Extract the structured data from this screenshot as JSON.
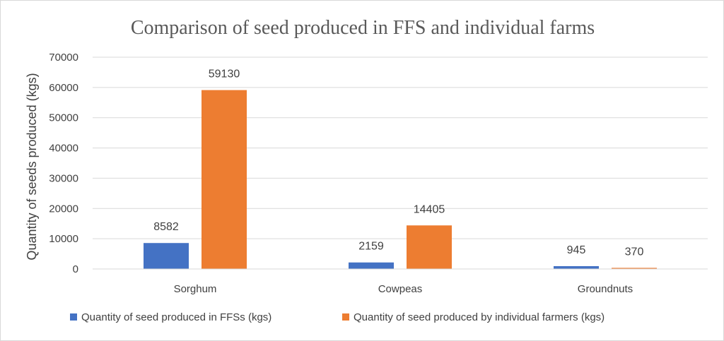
{
  "chart_data": {
    "type": "bar",
    "title": "Comparison of  seed produced in FFS and individual farms",
    "xlabel": "",
    "ylabel": "Quantity of seeds produced (kgs)",
    "categories": [
      "Sorghum",
      "Cowpeas",
      "Groundnuts"
    ],
    "series": [
      {
        "name": "Quantity of seed produced in FFSs (kgs)",
        "values": [
          8582,
          2159,
          945
        ],
        "color": "#4472c4"
      },
      {
        "name": "Quantity of seed produced by individual farmers (kgs)",
        "values": [
          59130,
          14405,
          370
        ],
        "color": "#ed7d31"
      }
    ],
    "ylim": [
      0,
      70000
    ],
    "yticks": [
      "0",
      "10000",
      "20000",
      "30000",
      "40000",
      "50000",
      "60000",
      "70000"
    ],
    "grid": true,
    "legend": "bottom",
    "data_labels": true
  }
}
